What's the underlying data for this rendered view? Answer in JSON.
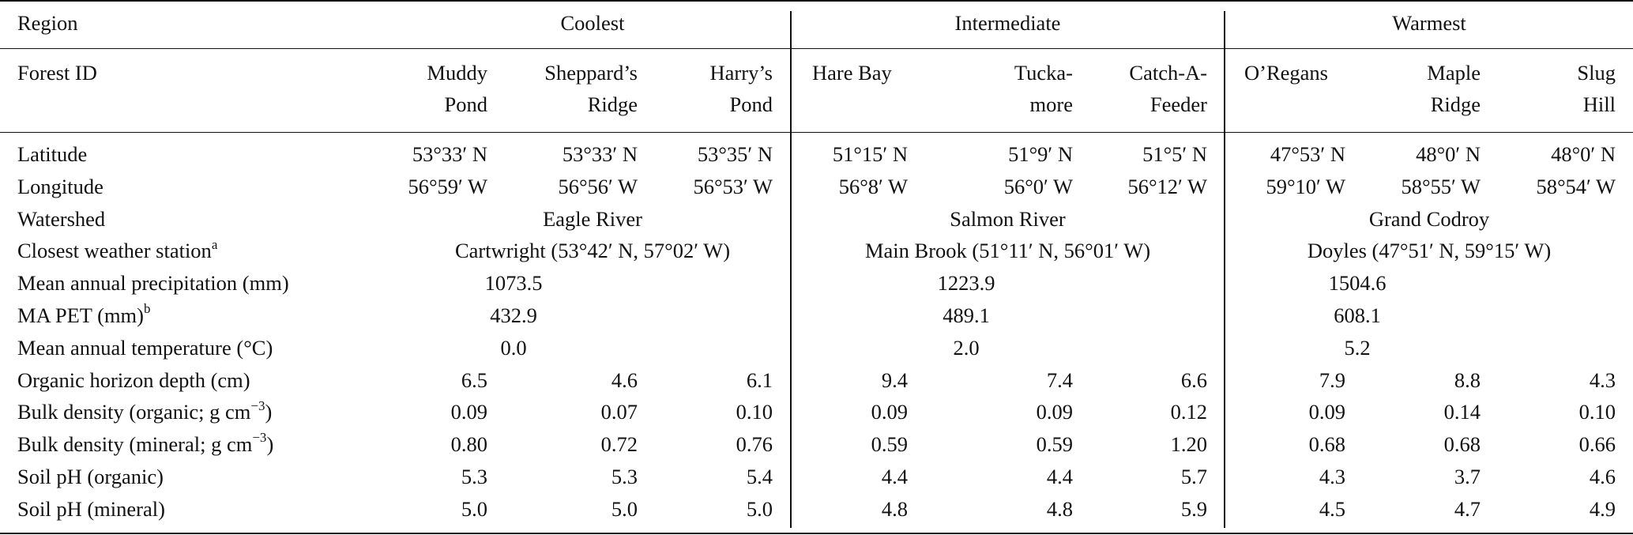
{
  "header": {
    "region_label": "Region",
    "groups": [
      "Coolest",
      "Intermediate",
      "Warmest"
    ],
    "forest_label": "Forest ID",
    "forests": [
      [
        "Muddy",
        "Pond"
      ],
      [
        "Sheppard’s",
        "Ridge"
      ],
      [
        "Harry’s",
        "Pond"
      ],
      [
        "Hare Bay",
        ""
      ],
      [
        "Tucka-",
        "more"
      ],
      [
        "Catch-A-",
        "Feeder"
      ],
      [
        "O’Regans",
        ""
      ],
      [
        "Maple",
        "Ridge"
      ],
      [
        "Slug",
        "Hill"
      ]
    ]
  },
  "rows": {
    "latitude": {
      "label": "Latitude",
      "values": [
        "53°33′ N",
        "53°33′ N",
        "53°35′ N",
        "51°15′ N",
        "51°9′ N",
        "51°5′ N",
        "47°53′ N",
        "48°0′ N",
        "48°0′ N"
      ]
    },
    "longitude": {
      "label": "Longitude",
      "values": [
        "56°59′ W",
        "56°56′ W",
        "56°53′ W",
        "56°8′ W",
        "56°0′ W",
        "56°12′ W",
        "59°10′ W",
        "58°55′ W",
        "58°54′ W"
      ]
    },
    "watershed": {
      "label": "Watershed",
      "values": [
        "Eagle River",
        "Salmon River",
        "Grand Codroy"
      ]
    },
    "station": {
      "label": "Closest weather station",
      "label_sup": "a",
      "values": [
        "Cartwright (53°42′ N, 57°02′ W)",
        "Main Brook (51°11′ N, 56°01′ W)",
        "Doyles (47°51′ N, 59°15′ W)"
      ]
    },
    "precip": {
      "label": "Mean annual precipitation (mm)",
      "values": [
        "1073.5",
        "1223.9",
        "1504.6"
      ]
    },
    "pet": {
      "label": "MA PET (mm)",
      "label_sup": "b",
      "values": [
        "432.9",
        "489.1",
        "608.1"
      ]
    },
    "temp": {
      "label": "Mean annual temperature (°C)",
      "values": [
        "0.0",
        "2.0",
        "5.2"
      ]
    },
    "organic_depth": {
      "label": "Organic horizon depth (cm)",
      "values": [
        "6.5",
        "4.6",
        "6.1",
        "9.4",
        "7.4",
        "6.6",
        "7.9",
        "8.8",
        "4.3"
      ]
    },
    "bd_organic": {
      "label_pre": "Bulk density (organic; g cm",
      "label_sup": "−3",
      "label_post": ")",
      "values": [
        "0.09",
        "0.07",
        "0.10",
        "0.09",
        "0.09",
        "0.12",
        "0.09",
        "0.14",
        "0.10"
      ]
    },
    "bd_mineral": {
      "label_pre": "Bulk density (mineral; g cm",
      "label_sup": "−3",
      "label_post": ")",
      "values": [
        "0.80",
        "0.72",
        "0.76",
        "0.59",
        "0.59",
        "1.20",
        "0.68",
        "0.68",
        "0.66"
      ]
    },
    "ph_organic": {
      "label": "Soil pH (organic)",
      "values": [
        "5.3",
        "5.3",
        "5.4",
        "4.4",
        "4.4",
        "5.7",
        "4.3",
        "3.7",
        "4.6"
      ]
    },
    "ph_mineral": {
      "label": "Soil pH (mineral)",
      "values": [
        "5.0",
        "5.0",
        "5.0",
        "4.8",
        "4.8",
        "5.9",
        "4.5",
        "4.7",
        "4.9"
      ]
    }
  }
}
